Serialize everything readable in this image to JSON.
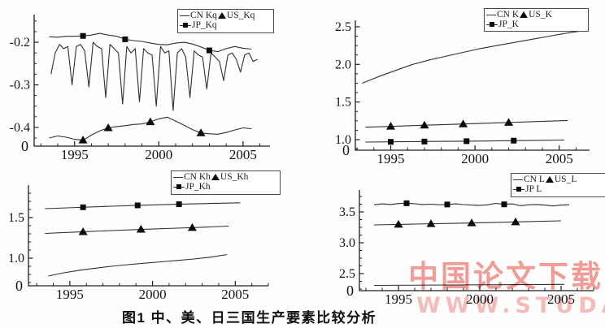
{
  "figure": {
    "caption": "图1 中、美、日三国生产要素比较分析",
    "watermark": {
      "line1": "中国论文下载",
      "line2": "WWW.STUDA.",
      "color1": "#ef837d",
      "color2": "#f2a5a1"
    }
  },
  "chart_data": [
    {
      "id": "Kq",
      "type": "line",
      "title": "",
      "xlabel": "",
      "ylabel": "",
      "xlim": [
        1992.6,
        2006.6
      ],
      "ylim": [
        -0.444,
        -0.135
      ],
      "xticks": [
        1995,
        2000,
        2005
      ],
      "xtick_labels": [
        "1995",
        "2000",
        "2005"
      ],
      "xminor_step": 1,
      "yticks": [
        -0.2,
        -0.3,
        -0.4
      ],
      "ytick_labels": [
        "-0.2",
        "-0.3",
        "-0.4"
      ],
      "yminor": [
        -0.15,
        -0.175,
        -0.225,
        -0.25,
        -0.275,
        -0.325,
        -0.35,
        -0.375,
        -0.425
      ],
      "origin_label": "0",
      "grid": false,
      "legend": {
        "pos": [
          218,
          11,
          112,
          26
        ],
        "rows": [
          [
            {
              "icon": "line",
              "label": "CN Kq"
            },
            {
              "icon": "triangle",
              "label": "US_Kq"
            }
          ],
          [
            {
              "icon": "square-line",
              "label": "JP_Kq"
            }
          ]
        ]
      },
      "series": [
        {
          "name": "CN_Kq",
          "marker": null,
          "x0": 1993.6,
          "dx": 0.25,
          "y": [
            -0.275,
            -0.225,
            -0.205,
            -0.215,
            -0.21,
            -0.3,
            -0.21,
            -0.205,
            -0.22,
            -0.305,
            -0.2,
            -0.21,
            -0.215,
            -0.33,
            -0.205,
            -0.215,
            -0.225,
            -0.345,
            -0.21,
            -0.225,
            -0.215,
            -0.34,
            -0.215,
            -0.225,
            -0.23,
            -0.35,
            -0.21,
            -0.225,
            -0.22,
            -0.36,
            -0.225,
            -0.215,
            -0.235,
            -0.33,
            -0.22,
            -0.23,
            -0.235,
            -0.31,
            -0.225,
            -0.235,
            -0.245,
            -0.29,
            -0.23,
            -0.225,
            -0.24,
            -0.27,
            -0.23,
            -0.225,
            -0.245,
            -0.24
          ]
        },
        {
          "name": "US_Kq",
          "marker": "triangle",
          "marker_x": [
            1995.5,
            1997.0,
            1999.5,
            2002.5
          ],
          "x0": 1993.5,
          "dx": 0.5,
          "y": [
            -0.425,
            -0.42,
            -0.423,
            -0.428,
            -0.43,
            -0.418,
            -0.408,
            -0.401,
            -0.398,
            -0.396,
            -0.393,
            -0.392,
            -0.387,
            -0.38,
            -0.376,
            -0.385,
            -0.395,
            -0.405,
            -0.413,
            -0.415,
            -0.416,
            -0.412,
            -0.406,
            -0.401,
            -0.403
          ]
        },
        {
          "name": "JP_Kq",
          "marker": "square",
          "marker_x": [
            1995.5,
            1998.0,
            2003.0
          ],
          "x0": 1993.5,
          "dx": 0.5,
          "y": [
            -0.187,
            -0.188,
            -0.186,
            -0.186,
            -0.185,
            -0.183,
            -0.179,
            -0.183,
            -0.186,
            -0.193,
            -0.196,
            -0.198,
            -0.202,
            -0.205,
            -0.206,
            -0.202,
            -0.2,
            -0.204,
            -0.211,
            -0.219,
            -0.222,
            -0.215,
            -0.21,
            -0.214,
            -0.216
          ]
        }
      ]
    },
    {
      "id": "K",
      "type": "line",
      "title": "",
      "xlabel": "",
      "ylabel": "",
      "xlim": [
        1992.9,
        2006.8
      ],
      "ylim": [
        0.86,
        2.586
      ],
      "xticks": [
        1995,
        2000,
        2005
      ],
      "xtick_labels": [
        "1995",
        "2000",
        "2005"
      ],
      "xminor_step": 1,
      "yticks": [
        2.5,
        2.0,
        1.5,
        1.0
      ],
      "ytick_labels": [
        "2.5",
        "2.0",
        "1.5",
        "1.0"
      ],
      "yminor": [
        0.875,
        1.125,
        1.25,
        1.375,
        1.625,
        1.75,
        1.875,
        2.125,
        2.25,
        2.375
      ],
      "origin_label": "0",
      "grid": false,
      "legend": {
        "pos": [
          223,
          10,
          122,
          25
        ],
        "rows": [
          [
            {
              "icon": "line",
              "label": "CN K"
            },
            {
              "icon": "triangle",
              "label": "US_K"
            }
          ],
          [
            {
              "icon": "square-line",
              "label": "JP_K"
            }
          ]
        ]
      },
      "series": [
        {
          "name": "CN_K",
          "marker": null,
          "x": [
            1993.3,
            1994.3,
            1995.3,
            1996.3,
            1997.3,
            1998.3,
            1999.3,
            2000.3,
            2001.3,
            2002.3,
            2003.3,
            2004.3,
            2005.3,
            2006.2
          ],
          "y": [
            1.75,
            1.84,
            1.92,
            2.0,
            2.06,
            2.11,
            2.16,
            2.21,
            2.25,
            2.29,
            2.33,
            2.37,
            2.41,
            2.44
          ]
        },
        {
          "name": "US_K",
          "marker": "triangle",
          "marker_x": [
            1995.0,
            1997.0,
            1999.3,
            2002.0
          ],
          "x": [
            1993.5,
            1995.5,
            1997.5,
            1999.5,
            2001.5,
            2003.5,
            2005.5
          ],
          "y": [
            1.165,
            1.18,
            1.195,
            1.21,
            1.225,
            1.24,
            1.255
          ]
        },
        {
          "name": "JP_K",
          "marker": "square",
          "marker_x": [
            1995.0,
            1997.0,
            1999.5,
            2002.3
          ],
          "x": [
            1993.5,
            1995.5,
            1997.5,
            1999.5,
            2001.5,
            2003.5,
            2005.3
          ],
          "y": [
            0.968,
            0.972,
            0.976,
            0.98,
            0.985,
            0.99,
            0.995
          ]
        }
      ]
    },
    {
      "id": "Kh",
      "type": "line",
      "title": "",
      "xlabel": "",
      "ylabel": "",
      "xlim": [
        1992.5,
        2007.0
      ],
      "ylim": [
        0.66,
        1.9
      ],
      "xticks": [
        1995,
        2000,
        2005
      ],
      "xtick_labels": [
        "1995",
        "2000",
        "2005"
      ],
      "xminor_step": 1,
      "yticks": [
        1.5,
        1.0
      ],
      "ytick_labels": [
        "1.5",
        "1.0"
      ],
      "yminor": [
        0.7,
        0.8,
        0.9,
        1.1,
        1.2,
        1.3,
        1.4,
        1.6,
        1.7,
        1.8
      ],
      "origin_label": "0",
      "grid": false,
      "legend": {
        "pos": [
          210,
          5,
          128,
          26
        ],
        "rows": [
          [
            {
              "icon": "line",
              "label": "CN Kh"
            },
            {
              "icon": "triangle",
              "label": "US_Kh"
            }
          ],
          [
            {
              "icon": "square-line",
              "label": "JP_Kh"
            }
          ]
        ]
      },
      "series": [
        {
          "name": "CN_Kh",
          "marker": null,
          "x": [
            1993.7,
            1994.5,
            1995.5,
            1996.5,
            1997.5,
            1998.5,
            1999.5,
            2000.5,
            2001.5,
            2002.5,
            2003.5,
            2004.5
          ],
          "y": [
            0.78,
            0.815,
            0.848,
            0.876,
            0.9,
            0.92,
            0.938,
            0.955,
            0.972,
            0.99,
            1.012,
            1.045
          ]
        },
        {
          "name": "US_Kh",
          "marker": "triangle",
          "marker_x": [
            1995.8,
            1999.3,
            2002.4
          ],
          "x": [
            1993.5,
            1995.5,
            1997.5,
            1999.5,
            2001.5,
            2003.5,
            2004.6
          ],
          "y": [
            1.305,
            1.323,
            1.34,
            1.356,
            1.37,
            1.385,
            1.395
          ]
        },
        {
          "name": "JP_Kh",
          "marker": "square",
          "marker_x": [
            1995.8,
            1999.1,
            2001.6
          ],
          "x": [
            1993.5,
            1995.5,
            1997.5,
            1999.5,
            2001.5,
            2003.5,
            2005.3
          ],
          "y": [
            1.61,
            1.625,
            1.64,
            1.653,
            1.664,
            1.674,
            1.682
          ]
        }
      ]
    },
    {
      "id": "L",
      "type": "line",
      "title": "",
      "xlabel": "",
      "ylabel": "",
      "xlim": [
        1992.6,
        2007.0
      ],
      "ylim": [
        2.224,
        3.855
      ],
      "xticks": [
        1995,
        2000,
        2005
      ],
      "xtick_labels": [
        "1995",
        "2000",
        "2005"
      ],
      "xminor_step": 1,
      "yticks": [
        3.5,
        3.0,
        2.5
      ],
      "ytick_labels": [
        "3.5",
        "3.0",
        "2.5"
      ],
      "yminor": [
        2.25,
        2.375,
        2.625,
        2.75,
        2.875,
        3.125,
        3.25,
        3.375,
        3.625,
        3.75
      ],
      "origin_label": "0",
      "grid": false,
      "legend": {
        "pos": [
          256,
          8,
          110,
          26
        ],
        "rows": [
          [
            {
              "icon": "line",
              "label": "CN L"
            },
            {
              "icon": "triangle",
              "label": "US_L"
            }
          ],
          [
            {
              "icon": "square-line",
              "label": "JP L"
            }
          ]
        ]
      },
      "series": [
        {
          "name": "CN_L",
          "marker": null,
          "x": [
            1993.5,
            2005.2
          ],
          "y": [
            2.31,
            2.325
          ]
        },
        {
          "name": "US_L",
          "marker": "triangle",
          "marker_x": [
            1995.0,
            1997.0,
            1999.5,
            2002.2
          ],
          "x": [
            1993.5,
            1996.0,
            1998.5,
            2001.0,
            2003.0,
            2005.0
          ],
          "y": [
            3.29,
            3.303,
            3.315,
            3.33,
            3.343,
            3.355
          ]
        },
        {
          "name": "JP_L",
          "marker": "square",
          "marker_x": [
            1995.5,
            1998.0,
            2001.5
          ],
          "x0": 1993.5,
          "dx": 0.5,
          "y": [
            3.615,
            3.63,
            3.62,
            3.635,
            3.64,
            3.632,
            3.62,
            3.625,
            3.615,
            3.62,
            3.63,
            3.618,
            3.61,
            3.606,
            3.615,
            3.638,
            3.622,
            3.63,
            3.6,
            3.615,
            3.62,
            3.61,
            3.596,
            3.61,
            3.615
          ]
        }
      ]
    }
  ]
}
